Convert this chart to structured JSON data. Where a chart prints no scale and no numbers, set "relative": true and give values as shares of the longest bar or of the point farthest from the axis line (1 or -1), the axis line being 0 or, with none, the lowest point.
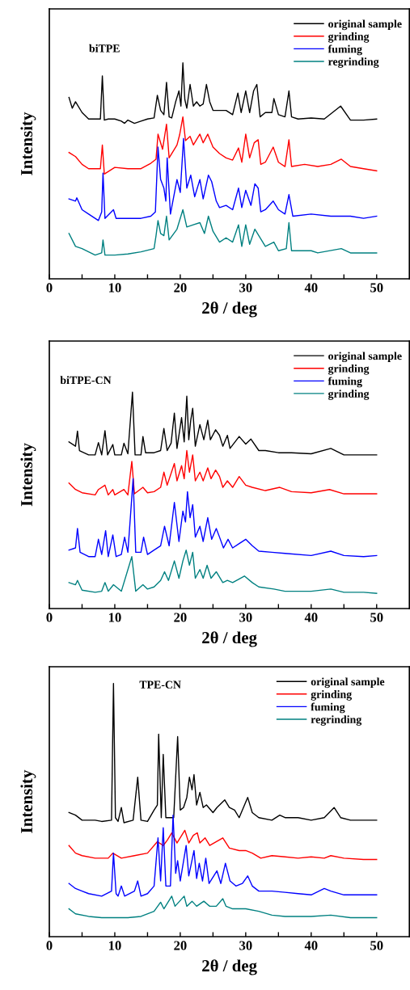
{
  "chart_data": [
    {
      "type": "line",
      "annotations": [
        "biTPE"
      ],
      "xlabel": "2θ / deg",
      "ylabel": "Intensity",
      "relative": true,
      "xlim": [
        0,
        55
      ],
      "xticks": [
        0,
        {
          "value": 5,
          "label": null
        },
        10,
        {
          "value": 15,
          "label": null
        },
        20,
        {
          "value": 25,
          "label": null
        },
        30,
        {
          "value": 35,
          "label": null
        },
        40,
        {
          "value": 45,
          "label": null
        },
        50
      ],
      "tick_labels": "x",
      "legend": "top right",
      "grid": false,
      "series": [
        {
          "name": "original sample",
          "color": "#000000",
          "x": [
            3,
            3.5,
            4,
            5,
            6,
            7,
            7.8,
            8.1,
            8.4,
            9,
            10,
            11,
            11.5,
            12,
            13,
            14,
            15,
            16,
            16.5,
            17,
            17.5,
            17.9,
            18.3,
            18.7,
            19.3,
            19.8,
            20.1,
            20.4,
            20.7,
            21,
            21.5,
            22,
            22.5,
            23,
            23.5,
            24,
            24.5,
            25,
            26,
            27,
            28,
            28.8,
            29.3,
            30,
            30.6,
            31.2,
            31.7,
            32.2,
            33,
            34,
            34.3,
            35,
            36,
            36.6,
            37,
            38,
            40,
            42,
            44.5,
            46,
            48,
            50
          ],
          "values": [
            0.84,
            0.79,
            0.82,
            0.77,
            0.74,
            0.74,
            0.74,
            0.94,
            0.735,
            0.74,
            0.74,
            0.73,
            0.72,
            0.735,
            0.72,
            0.73,
            0.74,
            0.745,
            0.85,
            0.78,
            0.76,
            0.91,
            0.75,
            0.745,
            0.82,
            0.87,
            0.8,
            1.0,
            0.83,
            0.79,
            0.9,
            0.8,
            0.82,
            0.8,
            0.81,
            0.9,
            0.82,
            0.78,
            0.78,
            0.78,
            0.76,
            0.86,
            0.77,
            0.87,
            0.77,
            0.87,
            0.9,
            0.75,
            0.77,
            0.77,
            0.835,
            0.76,
            0.75,
            0.87,
            0.75,
            0.74,
            0.745,
            0.74,
            0.8,
            0.735,
            0.735,
            0.74
          ]
        },
        {
          "name": "grinding",
          "color": "#ff0000",
          "x": [
            3,
            4,
            5,
            6,
            7.8,
            8.1,
            8.4,
            10,
            12,
            14,
            15.5,
            16.3,
            16.6,
            17.3,
            17.9,
            18.3,
            19.5,
            19.9,
            20.4,
            20.8,
            21.5,
            22,
            23,
            23.5,
            24.2,
            25,
            26,
            27,
            28,
            28.9,
            29.4,
            30,
            30.6,
            31.3,
            31.9,
            32.3,
            33,
            34.2,
            35,
            36,
            36.6,
            37,
            39,
            41,
            43,
            44.6,
            46,
            48,
            50
          ],
          "values": [
            0.585,
            0.566,
            0.53,
            0.51,
            0.51,
            0.62,
            0.485,
            0.516,
            0.51,
            0.51,
            0.535,
            0.554,
            0.67,
            0.6,
            0.716,
            0.56,
            0.62,
            0.666,
            0.75,
            0.64,
            0.66,
            0.62,
            0.67,
            0.63,
            0.67,
            0.61,
            0.58,
            0.56,
            0.55,
            0.606,
            0.54,
            0.67,
            0.56,
            0.63,
            0.644,
            0.53,
            0.54,
            0.61,
            0.54,
            0.52,
            0.644,
            0.52,
            0.53,
            0.52,
            0.53,
            0.554,
            0.52,
            0.51,
            0.5
          ]
        },
        {
          "name": "fuming",
          "color": "#0000ff",
          "x": [
            3,
            4,
            4.2,
            5,
            6,
            7.5,
            8,
            8.2,
            8.5,
            9.8,
            10.2,
            12,
            14,
            15.5,
            16.2,
            16.6,
            17,
            17.5,
            17.8,
            18,
            18.5,
            19.5,
            20,
            20.5,
            21,
            21.6,
            22.2,
            23,
            23.5,
            24.3,
            24.8,
            25.5,
            26,
            27,
            28,
            28.9,
            29.4,
            30,
            30.8,
            31.4,
            31.9,
            32.3,
            33,
            34.2,
            35,
            36,
            36.6,
            37.2,
            40,
            43,
            46,
            48,
            50
          ],
          "values": [
            0.37,
            0.36,
            0.375,
            0.32,
            0.3,
            0.27,
            0.31,
            0.49,
            0.28,
            0.32,
            0.28,
            0.28,
            0.28,
            0.29,
            0.31,
            0.61,
            0.46,
            0.42,
            0.36,
            0.56,
            0.3,
            0.46,
            0.4,
            0.65,
            0.42,
            0.48,
            0.38,
            0.46,
            0.37,
            0.48,
            0.45,
            0.36,
            0.33,
            0.34,
            0.32,
            0.42,
            0.33,
            0.41,
            0.34,
            0.44,
            0.42,
            0.31,
            0.32,
            0.36,
            0.32,
            0.3,
            0.39,
            0.29,
            0.3,
            0.29,
            0.29,
            0.28,
            0.29
          ]
        },
        {
          "name": "regrinding",
          "color": "#008080",
          "x": [
            3,
            4,
            5,
            6,
            7,
            8,
            8.2,
            8.5,
            10,
            12,
            14,
            16,
            16.3,
            16.6,
            17,
            17.5,
            17.9,
            18.3,
            19.5,
            20.4,
            21,
            22,
            23,
            23.7,
            24.3,
            25,
            26,
            27,
            28,
            28.9,
            29.4,
            30,
            30.6,
            31.4,
            32,
            33,
            34.3,
            35,
            36.2,
            36.6,
            37,
            40,
            41,
            44.6,
            46,
            48,
            50
          ],
          "values": [
            0.21,
            0.15,
            0.14,
            0.125,
            0.11,
            0.12,
            0.18,
            0.11,
            0.11,
            0.115,
            0.125,
            0.14,
            0.2,
            0.27,
            0.21,
            0.2,
            0.29,
            0.18,
            0.23,
            0.32,
            0.24,
            0.25,
            0.26,
            0.21,
            0.29,
            0.22,
            0.17,
            0.19,
            0.17,
            0.25,
            0.15,
            0.25,
            0.16,
            0.23,
            0.2,
            0.15,
            0.17,
            0.13,
            0.14,
            0.26,
            0.13,
            0.13,
            0.12,
            0.14,
            0.12,
            0.12,
            0.12
          ]
        }
      ]
    },
    {
      "type": "line",
      "annotations": [
        "biTPE-CN"
      ],
      "xlabel": "2θ / deg",
      "ylabel": "Intensity",
      "relative": true,
      "xlim": [
        0,
        55
      ],
      "xticks": [
        0,
        {
          "value": 5,
          "label": null
        },
        10,
        {
          "value": 15,
          "label": null
        },
        20,
        {
          "value": 25,
          "label": null
        },
        30,
        {
          "value": 35,
          "label": null
        },
        40,
        {
          "value": 45,
          "label": null
        },
        50
      ],
      "tick_labels": "x",
      "legend": "top right",
      "grid": false,
      "series": [
        {
          "name": "original sample",
          "color": "#000000",
          "x": [
            3,
            4,
            4.3,
            4.6,
            6,
            7,
            7.5,
            8,
            8.5,
            8.9,
            9.7,
            10,
            11,
            11.4,
            12,
            12.7,
            13.1,
            14,
            14.3,
            14.7,
            16,
            17,
            17.5,
            18,
            18.6,
            19.1,
            19.5,
            20.2,
            20.6,
            21,
            21.3,
            21.6,
            21.9,
            22.3,
            23,
            23.6,
            24.2,
            24.6,
            25.4,
            26,
            26.5,
            27.2,
            27.6,
            29,
            30,
            30.8,
            32,
            33,
            35,
            37,
            40,
            43,
            45,
            48,
            50
          ],
          "values": [
            0.77,
            0.75,
            0.82,
            0.73,
            0.71,
            0.71,
            0.767,
            0.71,
            0.822,
            0.71,
            0.758,
            0.71,
            0.71,
            0.764,
            0.715,
            1.0,
            0.71,
            0.71,
            0.795,
            0.72,
            0.72,
            0.73,
            0.832,
            0.73,
            0.764,
            0.903,
            0.74,
            0.882,
            0.77,
            0.981,
            0.78,
            0.87,
            0.925,
            0.75,
            0.85,
            0.78,
            0.87,
            0.78,
            0.826,
            0.8,
            0.75,
            0.8,
            0.74,
            0.795,
            0.76,
            0.783,
            0.73,
            0.73,
            0.72,
            0.72,
            0.715,
            0.74,
            0.71,
            0.71,
            0.71
          ]
        },
        {
          "name": "grinding",
          "color": "#ff0000",
          "x": [
            3,
            4,
            5,
            7,
            7.5,
            8.5,
            9,
            9.7,
            10,
            11.4,
            12,
            12.6,
            13,
            14.3,
            15,
            16,
            17,
            17.5,
            18,
            19.1,
            19.5,
            20.2,
            20.6,
            21,
            21.4,
            21.9,
            22.3,
            23,
            23.5,
            24.2,
            24.7,
            25.4,
            26,
            26.5,
            27.2,
            28,
            29,
            30,
            31,
            33,
            35.2,
            37,
            40,
            42.8,
            45,
            48,
            50
          ],
          "values": [
            0.58,
            0.55,
            0.535,
            0.525,
            0.55,
            0.57,
            0.525,
            0.55,
            0.525,
            0.55,
            0.525,
            0.68,
            0.53,
            0.56,
            0.535,
            0.54,
            0.56,
            0.63,
            0.57,
            0.67,
            0.59,
            0.66,
            0.6,
            0.73,
            0.63,
            0.71,
            0.59,
            0.63,
            0.59,
            0.65,
            0.6,
            0.64,
            0.61,
            0.56,
            0.59,
            0.56,
            0.61,
            0.57,
            0.56,
            0.545,
            0.56,
            0.54,
            0.535,
            0.55,
            0.53,
            0.53,
            0.53
          ]
        },
        {
          "name": "fuming",
          "color": "#0000ff",
          "x": [
            3,
            4,
            4.3,
            4.7,
            6,
            7,
            7.5,
            8,
            8.6,
            9,
            9.7,
            10.2,
            11,
            11.5,
            12,
            12.8,
            13.2,
            14,
            14.4,
            15,
            16,
            17,
            17.6,
            18.3,
            19.1,
            19.8,
            20.4,
            20.8,
            21.1,
            21.5,
            21.9,
            22.3,
            23,
            23.5,
            24.2,
            24.8,
            25.5,
            26,
            26.6,
            27.3,
            28,
            29,
            30,
            31,
            32,
            34,
            36,
            40,
            43,
            45,
            48,
            50
          ],
          "values": [
            0.27,
            0.28,
            0.37,
            0.26,
            0.24,
            0.24,
            0.32,
            0.25,
            0.36,
            0.24,
            0.34,
            0.24,
            0.25,
            0.33,
            0.26,
            0.6,
            0.26,
            0.26,
            0.33,
            0.25,
            0.27,
            0.29,
            0.38,
            0.29,
            0.49,
            0.31,
            0.45,
            0.4,
            0.54,
            0.42,
            0.48,
            0.33,
            0.38,
            0.31,
            0.42,
            0.32,
            0.37,
            0.33,
            0.28,
            0.32,
            0.28,
            0.3,
            0.32,
            0.29,
            0.265,
            0.26,
            0.255,
            0.245,
            0.265,
            0.245,
            0.24,
            0.245
          ]
        },
        {
          "name": "grinding",
          "color": "#008080",
          "x": [
            3,
            4,
            4.3,
            5,
            7,
            8,
            8.5,
            9,
            9.8,
            11,
            12.6,
            13.2,
            14.3,
            15,
            16,
            17,
            17.6,
            18.2,
            19.1,
            19.8,
            20.4,
            20.9,
            21.4,
            21.9,
            22.3,
            23,
            23.5,
            24.1,
            24.7,
            25.5,
            26.5,
            27.2,
            28,
            29.8,
            31,
            32,
            34.3,
            36,
            40,
            43,
            45,
            48,
            50
          ],
          "values": [
            0.12,
            0.11,
            0.13,
            0.085,
            0.075,
            0.08,
            0.12,
            0.08,
            0.11,
            0.08,
            0.24,
            0.08,
            0.11,
            0.09,
            0.1,
            0.13,
            0.17,
            0.13,
            0.22,
            0.14,
            0.22,
            0.27,
            0.2,
            0.26,
            0.14,
            0.18,
            0.14,
            0.2,
            0.14,
            0.17,
            0.12,
            0.13,
            0.12,
            0.15,
            0.12,
            0.1,
            0.09,
            0.08,
            0.08,
            0.09,
            0.075,
            0.075,
            0.07
          ]
        }
      ]
    },
    {
      "type": "line",
      "annotations": [
        "TPE-CN"
      ],
      "xlabel": "2θ / deg",
      "ylabel": "Intensity",
      "relative": true,
      "xlim": [
        0,
        55
      ],
      "xticks": [
        0,
        {
          "value": 5,
          "label": null
        },
        10,
        {
          "value": 15,
          "label": null
        },
        20,
        {
          "value": 25,
          "label": null
        },
        30,
        {
          "value": 35,
          "label": null
        },
        40,
        {
          "value": 45,
          "label": null
        },
        50
      ],
      "tick_labels": "x",
      "legend": "top right",
      "grid": false,
      "series": [
        {
          "name": "original sample",
          "color": "#000000",
          "x": [
            3,
            4,
            5,
            7,
            8,
            9.5,
            9.8,
            10.1,
            10.5,
            11,
            11.4,
            12.8,
            13.5,
            14,
            15,
            16,
            16.5,
            16.7,
            17.1,
            17.4,
            17.8,
            19,
            19.6,
            20,
            20.5,
            21,
            21.4,
            21.8,
            22.1,
            22.5,
            23,
            23.5,
            24,
            25,
            25.6,
            26.8,
            27.5,
            28.3,
            29,
            30.3,
            31,
            32,
            34,
            35.2,
            36,
            38,
            40,
            42,
            43.5,
            44.5,
            46,
            48,
            50
          ],
          "values": [
            0.49,
            0.48,
            0.46,
            0.46,
            0.455,
            0.46,
            1.0,
            0.47,
            0.455,
            0.51,
            0.45,
            0.46,
            0.63,
            0.46,
            0.455,
            0.5,
            0.52,
            0.8,
            0.47,
            0.72,
            0.47,
            0.47,
            0.79,
            0.5,
            0.51,
            0.55,
            0.63,
            0.58,
            0.64,
            0.52,
            0.57,
            0.51,
            0.52,
            0.49,
            0.51,
            0.54,
            0.51,
            0.5,
            0.47,
            0.55,
            0.49,
            0.47,
            0.46,
            0.48,
            0.47,
            0.47,
            0.46,
            0.47,
            0.51,
            0.47,
            0.46,
            0.46,
            0.46
          ]
        },
        {
          "name": "grinding",
          "color": "#ff0000",
          "x": [
            3,
            4,
            5,
            7,
            9,
            9.7,
            11,
            13,
            15,
            16.5,
            17.4,
            18,
            18.7,
            19.5,
            20.7,
            21.3,
            22,
            22.6,
            23,
            23.8,
            24.5,
            26.5,
            27.5,
            29,
            30,
            31,
            32.3,
            34,
            36,
            38,
            40,
            42,
            43,
            45,
            48,
            50
          ],
          "values": [
            0.36,
            0.33,
            0.32,
            0.31,
            0.31,
            0.33,
            0.31,
            0.32,
            0.33,
            0.375,
            0.36,
            0.38,
            0.41,
            0.37,
            0.42,
            0.37,
            0.4,
            0.41,
            0.37,
            0.39,
            0.36,
            0.39,
            0.35,
            0.34,
            0.34,
            0.33,
            0.31,
            0.32,
            0.315,
            0.31,
            0.315,
            0.31,
            0.32,
            0.31,
            0.305,
            0.305
          ]
        },
        {
          "name": "fuming",
          "color": "#0000ff",
          "x": [
            3,
            4,
            5,
            6,
            8,
            9.5,
            9.8,
            10.2,
            10.5,
            11,
            11.5,
            13,
            13.5,
            14,
            15,
            16,
            16.6,
            17,
            17.4,
            17.8,
            18.5,
            18.9,
            19.3,
            19.6,
            20,
            20.9,
            21.3,
            22.1,
            22.5,
            22.9,
            23.4,
            23.9,
            24.4,
            25.6,
            26.2,
            26.9,
            27.6,
            28.5,
            29.5,
            30.3,
            31,
            32,
            34,
            36,
            38,
            40,
            42,
            43,
            45,
            48,
            50
          ],
          "values": [
            0.21,
            0.19,
            0.18,
            0.17,
            0.16,
            0.18,
            0.33,
            0.17,
            0.16,
            0.2,
            0.16,
            0.18,
            0.22,
            0.16,
            0.17,
            0.2,
            0.39,
            0.22,
            0.43,
            0.2,
            0.2,
            0.48,
            0.25,
            0.3,
            0.22,
            0.36,
            0.24,
            0.34,
            0.23,
            0.29,
            0.22,
            0.31,
            0.21,
            0.26,
            0.21,
            0.29,
            0.22,
            0.2,
            0.21,
            0.24,
            0.2,
            0.18,
            0.18,
            0.175,
            0.17,
            0.165,
            0.19,
            0.18,
            0.165,
            0.165,
            0.165
          ]
        },
        {
          "name": "regrinding",
          "color": "#008080",
          "x": [
            3,
            4,
            6,
            8,
            10,
            12,
            14,
            16,
            17,
            17.5,
            18.7,
            19.2,
            20.6,
            21,
            21.8,
            22.5,
            23.6,
            24.5,
            25.5,
            26.5,
            27,
            28,
            30,
            32,
            34,
            36,
            40,
            43,
            46,
            48,
            50
          ],
          "values": [
            0.11,
            0.09,
            0.08,
            0.075,
            0.075,
            0.075,
            0.08,
            0.1,
            0.136,
            0.11,
            0.16,
            0.12,
            0.16,
            0.12,
            0.14,
            0.12,
            0.14,
            0.12,
            0.12,
            0.15,
            0.12,
            0.11,
            0.11,
            0.1,
            0.085,
            0.08,
            0.08,
            0.085,
            0.075,
            0.075,
            0.075
          ]
        }
      ]
    }
  ]
}
